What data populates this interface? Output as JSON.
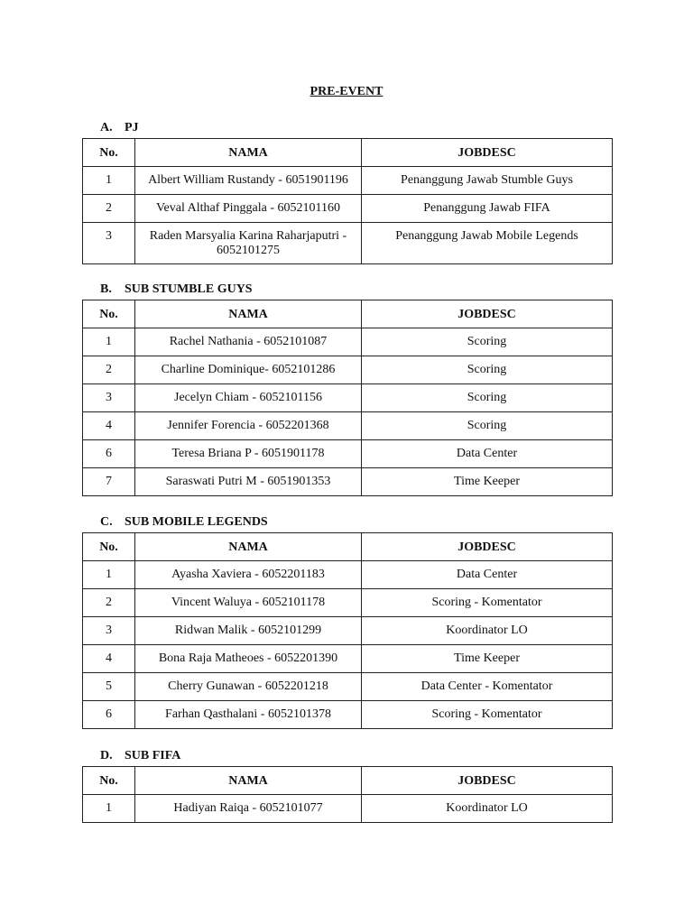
{
  "title": "PRE-EVENT",
  "headers": {
    "no": "No.",
    "nama": "NAMA",
    "jobdesc": "JOBDESC"
  },
  "sections": [
    {
      "letter": "A.",
      "name": "PJ",
      "rows": [
        {
          "no": "1",
          "nama": "Albert William Rustandy - 6051901196",
          "jobdesc": "Penanggung Jawab Stumble Guys"
        },
        {
          "no": "2",
          "nama": "Veval Althaf Pinggala - 6052101160",
          "jobdesc": "Penanggung Jawab FIFA"
        },
        {
          "no": "3",
          "nama": "Raden Marsyalia Karina Raharjaputri - 6052101275",
          "jobdesc": "Penanggung Jawab Mobile Legends"
        }
      ]
    },
    {
      "letter": "B.",
      "name": "SUB STUMBLE GUYS",
      "rows": [
        {
          "no": "1",
          "nama": "Rachel Nathania - 6052101087",
          "jobdesc": "Scoring"
        },
        {
          "no": "2",
          "nama": "Charline Dominique- 6052101286",
          "jobdesc": "Scoring"
        },
        {
          "no": "3",
          "nama": "Jecelyn Chiam - 6052101156",
          "jobdesc": "Scoring"
        },
        {
          "no": "4",
          "nama": "Jennifer Forencia - 6052201368",
          "jobdesc": "Scoring"
        },
        {
          "no": "6",
          "nama": "Teresa Briana P - 6051901178",
          "jobdesc": "Data Center"
        },
        {
          "no": "7",
          "nama": "Saraswati Putri M - 6051901353",
          "jobdesc": "Time Keeper"
        }
      ]
    },
    {
      "letter": "C.",
      "name": "SUB MOBILE LEGENDS",
      "rows": [
        {
          "no": "1",
          "nama": "Ayasha Xaviera - 6052201183",
          "jobdesc": "Data Center"
        },
        {
          "no": "2",
          "nama": "Vincent Waluya - 6052101178",
          "jobdesc": "Scoring - Komentator"
        },
        {
          "no": "3",
          "nama": "Ridwan Malik - 6052101299",
          "jobdesc": "Koordinator LO"
        },
        {
          "no": "4",
          "nama": "Bona Raja Matheoes - 6052201390",
          "jobdesc": "Time Keeper"
        },
        {
          "no": "5",
          "nama": "Cherry Gunawan - 6052201218",
          "jobdesc": "Data Center - Komentator"
        },
        {
          "no": "6",
          "nama": "Farhan Qasthalani - 6052101378",
          "jobdesc": "Scoring - Komentator"
        }
      ]
    },
    {
      "letter": "D.",
      "name": "SUB FIFA",
      "rows": [
        {
          "no": "1",
          "nama": "Hadiyan Raiqa - 6052101077",
          "jobdesc": "Koordinator LO"
        }
      ]
    }
  ]
}
